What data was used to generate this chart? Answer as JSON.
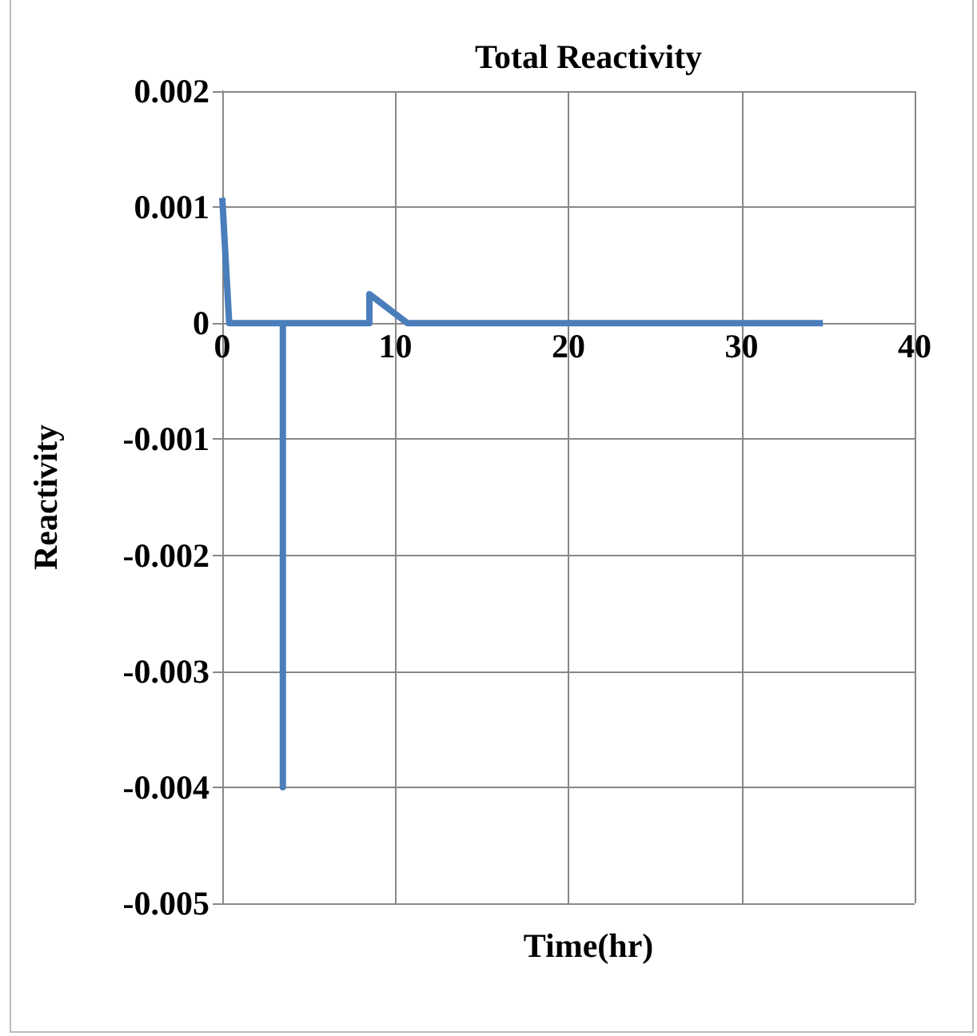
{
  "chart_data": {
    "type": "line",
    "title": "Total Reactivity",
    "xlabel": "Time(hr)",
    "ylabel": "Reactivity",
    "x": [
      0,
      0.4,
      3.5,
      3.5,
      3.5,
      8.5,
      8.5,
      10.7,
      34.7
    ],
    "series": [
      {
        "color": "#4a7ebb",
        "values": [
          0.00108,
          0,
          0,
          -0.004,
          0,
          0,
          0.00025,
          0,
          0
        ]
      }
    ],
    "xlim": [
      0,
      40
    ],
    "xticks": [
      0,
      10,
      20,
      30,
      40
    ],
    "ylim": [
      -0.005,
      0.002
    ],
    "yticks": [
      -0.005,
      -0.004,
      -0.003,
      -0.002,
      -0.001,
      0,
      0.001,
      0.002
    ],
    "grid": true,
    "marker": "none",
    "line_style": "solid"
  }
}
